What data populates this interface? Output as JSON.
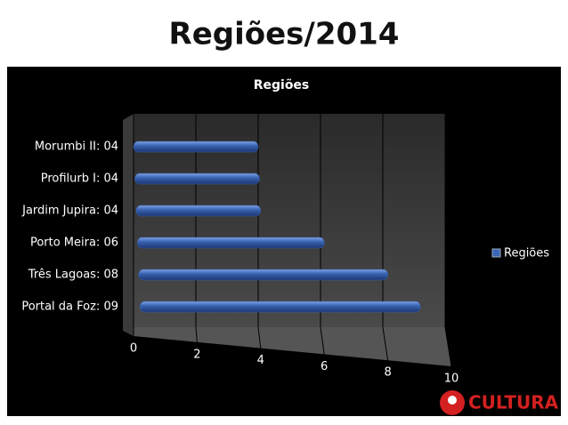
{
  "title": "Regiões/2014",
  "logo": "CULTURA",
  "chart_data": {
    "type": "bar",
    "orientation": "horizontal",
    "title": "Regiões",
    "categories": [
      "Morumbi II: 04",
      "Profilurb I: 04",
      "Jardim Jupira: 04",
      "Porto Meira: 06",
      "Três Lagoas: 08",
      "Portal da Foz: 09"
    ],
    "series": [
      {
        "name": "Regiões",
        "color": "#3a64b4",
        "values": [
          4,
          4,
          4,
          6,
          8,
          9
        ]
      }
    ],
    "xlim": [
      0,
      10
    ],
    "xticks": [
      0,
      2,
      4,
      6,
      8,
      10
    ],
    "grid": true,
    "legend": "right"
  }
}
